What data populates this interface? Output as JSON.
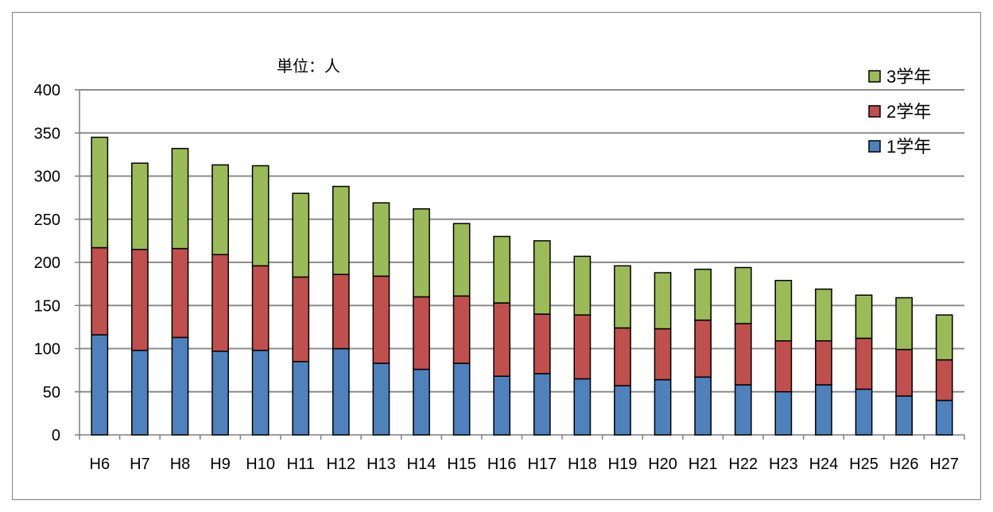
{
  "chart_data": {
    "type": "bar",
    "stacked": true,
    "unit_label": "単位：人",
    "categories": [
      "H6",
      "H7",
      "H8",
      "H9",
      "H10",
      "H11",
      "H12",
      "H13",
      "H14",
      "H15",
      "H16",
      "H17",
      "H18",
      "H19",
      "H20",
      "H21",
      "H22",
      "H23",
      "H24",
      "H25",
      "H26",
      "H27"
    ],
    "series": [
      {
        "name": "1学年",
        "color": "#4f81bd",
        "values": [
          116,
          98,
          113,
          97,
          98,
          85,
          100,
          83,
          76,
          83,
          68,
          71,
          65,
          57,
          64,
          67,
          58,
          50,
          58,
          53,
          45,
          40
        ]
      },
      {
        "name": "2学年",
        "color": "#c0504d",
        "values": [
          101,
          117,
          103,
          112,
          98,
          98,
          86,
          101,
          84,
          78,
          85,
          69,
          74,
          67,
          59,
          66,
          71,
          59,
          51,
          59,
          54,
          47
        ]
      },
      {
        "name": "3学年",
        "color": "#9bbb59",
        "values": [
          128,
          100,
          116,
          104,
          116,
          97,
          102,
          85,
          102,
          84,
          77,
          85,
          68,
          72,
          65,
          59,
          65,
          70,
          60,
          50,
          60,
          52
        ]
      }
    ],
    "ylim": [
      0,
      400
    ],
    "yticks": [
      0,
      50,
      100,
      150,
      200,
      250,
      300,
      350,
      400
    ],
    "grid": true,
    "legend_position": "top-right",
    "legend_order": [
      "3学年",
      "2学年",
      "1学年"
    ]
  }
}
